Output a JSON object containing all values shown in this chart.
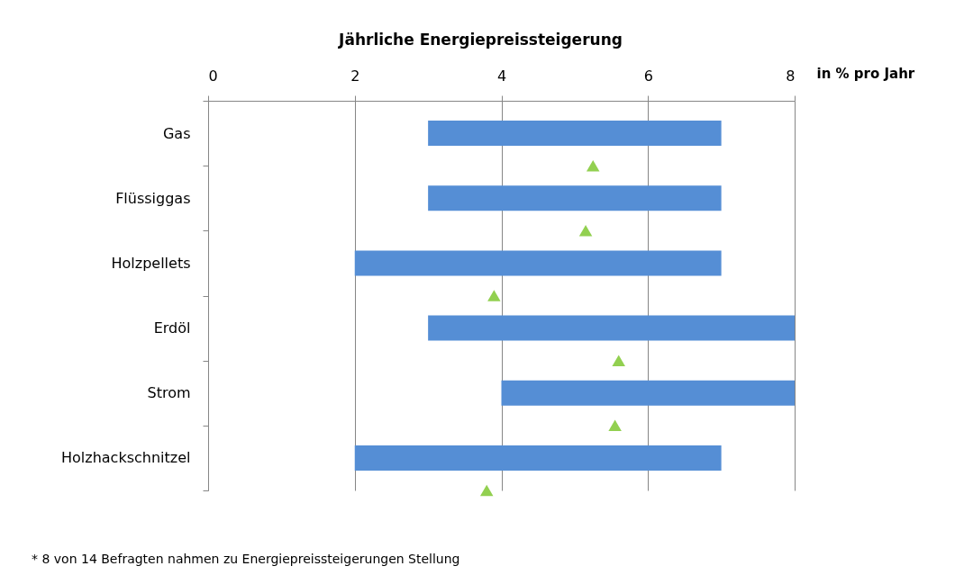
{
  "chart_data": {
    "type": "bar",
    "orientation": "horizontal",
    "title": "Jährliche Energiepreissteigerung",
    "xlabel": "in % pro Jahr",
    "categories": [
      null,
      "Gas",
      null,
      "Flüssiggas",
      null,
      "Holzpellets",
      null,
      "Erdöl",
      null,
      "Strom",
      null,
      "Holzhackschnitzel",
      null
    ],
    "series": [
      {
        "color": "#558ed5",
        "base": [
          null,
          3,
          null,
          3,
          null,
          2,
          null,
          3,
          null,
          4,
          null,
          2,
          null
        ],
        "values": [
          null,
          4,
          null,
          4,
          null,
          5,
          null,
          5,
          null,
          4,
          null,
          5,
          null
        ]
      },
      {
        "type": "scatter",
        "color": "#92d050",
        "marker": "triangle",
        "values": [
          null,
          null,
          5.25,
          null,
          5.15,
          null,
          3.9,
          null,
          5.6,
          null,
          5.55,
          null,
          3.8
        ]
      }
    ],
    "xlim": [
      0,
      8
    ],
    "xticks": [
      0,
      2,
      4,
      6,
      8
    ],
    "grid": "x",
    "annotations": [
      "* 8 von 14 Befragten nahmen zu Energiepreissteigerungen Stellung"
    ]
  }
}
